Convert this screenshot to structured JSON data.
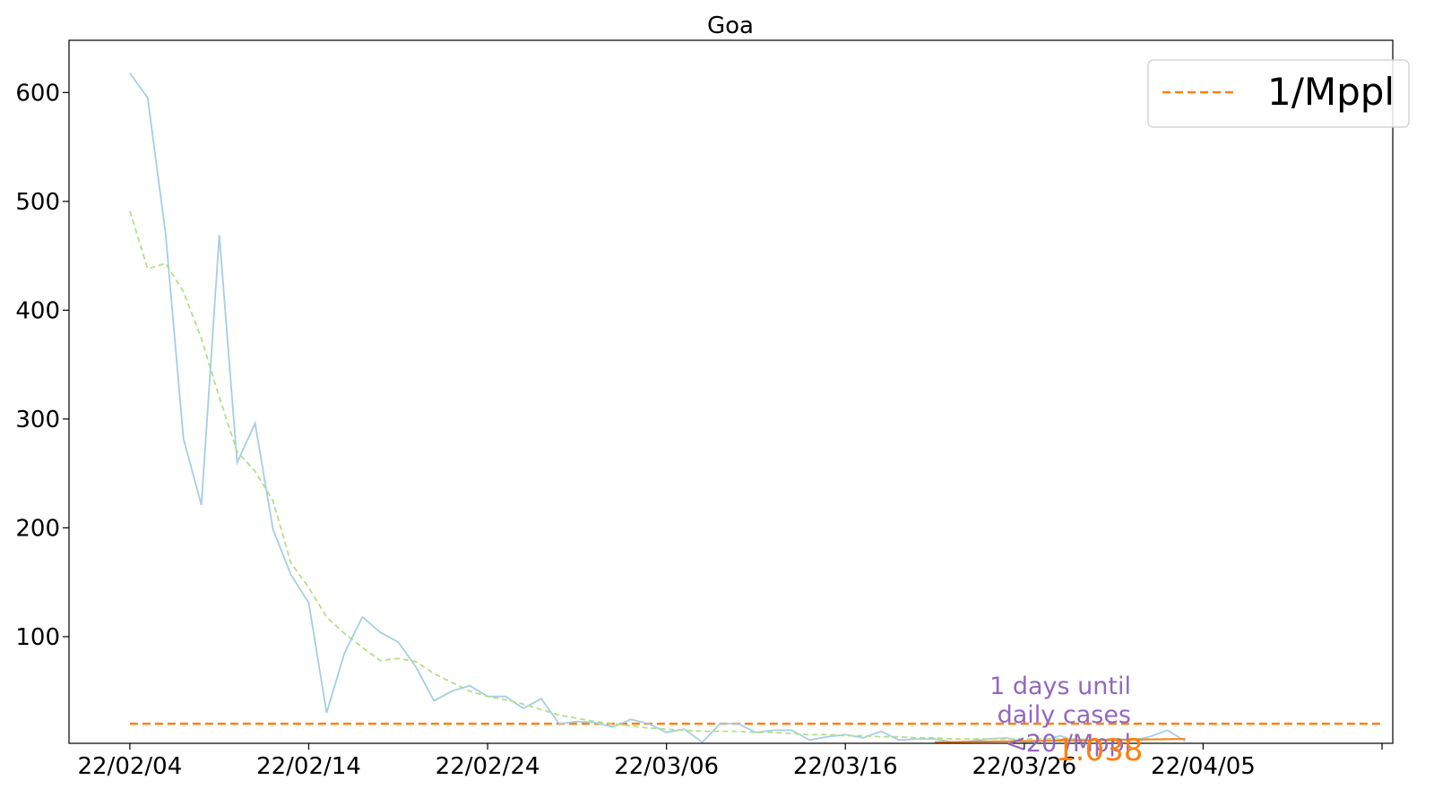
{
  "chart_data": {
    "type": "line",
    "title": "Goa",
    "xlabel": "",
    "ylabel": "",
    "ylim": [
      2,
      648
    ],
    "xlim_days": [
      -3.4,
      70.6
    ],
    "x_ticks": [
      "22/02/04",
      "22/02/14",
      "22/02/24",
      "22/03/06",
      "22/03/16",
      "22/03/26",
      "22/04/05",
      ""
    ],
    "y_ticks": [
      100,
      200,
      300,
      400,
      500,
      600
    ],
    "grid": false,
    "legend": {
      "placement": "top-right",
      "entries": [
        {
          "label": "1/Mppl",
          "color": "#ff7f0e",
          "dash": "dashed"
        }
      ]
    },
    "x_start": "22/02/04",
    "series": [
      {
        "color": "#a6cee3",
        "style": "solid",
        "values": [
          618,
          595,
          470,
          282,
          221,
          469,
          260,
          296,
          199,
          157,
          131,
          30,
          85,
          118,
          104,
          95,
          72,
          41,
          50,
          55,
          45,
          45,
          34,
          43,
          20,
          22,
          21,
          17,
          24,
          20,
          12,
          15,
          3,
          20,
          20,
          12,
          14,
          14,
          5,
          8,
          10,
          7,
          13,
          5,
          6,
          6,
          3,
          4,
          6,
          7,
          3,
          4,
          9,
          3,
          5,
          6,
          5,
          8,
          14,
          4
        ]
      },
      {
        "color": "#b2df8a",
        "style": "dashed",
        "values": [
          491,
          438,
          443,
          417,
          374,
          320,
          270,
          252,
          225,
          168,
          145,
          118,
          103,
          90,
          78,
          80,
          77,
          66,
          58,
          50,
          45,
          42,
          38,
          33,
          28,
          25,
          22,
          20,
          18,
          16,
          15,
          14,
          13,
          13,
          13,
          12,
          12,
          11,
          10,
          10,
          9,
          9,
          8,
          8,
          7,
          7,
          6,
          6,
          6,
          6,
          6,
          6,
          6,
          6,
          5,
          6,
          6,
          6,
          6,
          6
        ]
      }
    ],
    "reference_line": {
      "label": "1/Mppl",
      "value": 20,
      "color": "#ff7f0e",
      "x_range_days": [
        0,
        70
      ]
    },
    "projection_line": {
      "color": "#ff7f0e",
      "x_range_days": [
        45,
        59
      ],
      "y_range": [
        3,
        6
      ]
    },
    "annotations": [
      {
        "text_lines": [
          "1 days until",
          "daily cases",
          "<20 /Mppl"
        ],
        "color": "#9467bd"
      },
      {
        "text": "1.038",
        "color": "#ff7f0e"
      }
    ]
  }
}
